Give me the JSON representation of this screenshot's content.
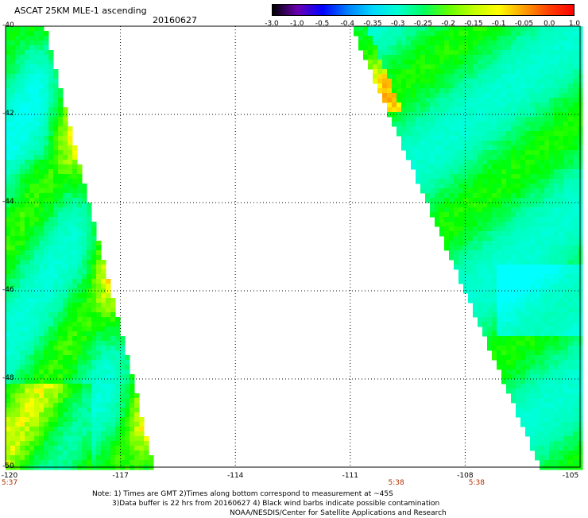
{
  "header": {
    "title": "ASCAT 25KM MLE-1 ascending",
    "date": "20160627"
  },
  "colorbar": {
    "labels": [
      "-3.0",
      "-1.0",
      "-0.5",
      "-0.4",
      "-0.35",
      "-0.3",
      "-0.25",
      "-0.2",
      "-0.15",
      "-0.1",
      "-0.05",
      "0.0",
      "1.0"
    ],
    "colors": [
      "#000000",
      "#6a00b0",
      "#0000ff",
      "#0080ff",
      "#00d8ff",
      "#00ffd0",
      "#00ff60",
      "#60ff00",
      "#c0ff00",
      "#ffff00",
      "#ffa000",
      "#ff4000",
      "#ff0000"
    ]
  },
  "axes": {
    "y_ticks": [
      "-40",
      "-42",
      "-44",
      "-46",
      "-48",
      "-50"
    ],
    "x_ticks": [
      "-120",
      "-117",
      "-114",
      "-111",
      "-108",
      "-105"
    ],
    "time_labels": [
      {
        "text": "5:37",
        "lon": -120
      },
      {
        "text": "5:38",
        "lon": -109.8
      },
      {
        "text": "5:38",
        "lon": -107.7
      }
    ]
  },
  "notes": {
    "line1": "Note: 1) Times are GMT 2)Times along bottom correspond to measurement at ~45S",
    "line2": "3)Data buffer is 22 hrs from 20160627 4) Black wind barbs indicate possible contamination",
    "line3": "NOAA/NESDIS/Center for Satellite Applications and Research"
  }
}
